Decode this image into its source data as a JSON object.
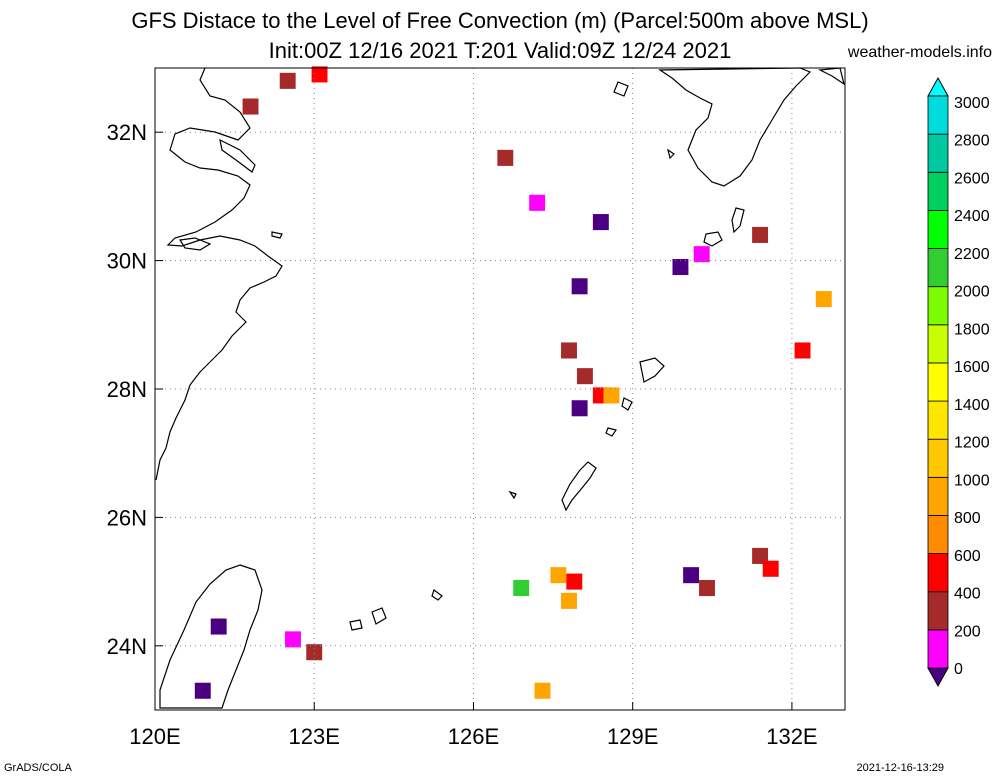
{
  "header": {
    "title_line1": "GFS Distace to the Level of Free Convection (m) (Parcel:500m above MSL)",
    "title_line2": "Init:00Z 12/16 2021 T:201 Valid:09Z 12/24 2021",
    "site": "weather-models.info"
  },
  "footer": {
    "credit": "GrADS/COLA",
    "timestamp": "2021-12-16-13:29"
  },
  "map": {
    "lon_range": [
      120,
      133
    ],
    "lat_range": [
      23,
      33
    ],
    "lon_ticks": [
      {
        "value": 120,
        "label": "120E"
      },
      {
        "value": 123,
        "label": "123E"
      },
      {
        "value": 126,
        "label": "126E"
      },
      {
        "value": 129,
        "label": "129E"
      },
      {
        "value": 132,
        "label": "132E"
      }
    ],
    "lat_ticks": [
      {
        "value": 24,
        "label": "24N"
      },
      {
        "value": 26,
        "label": "26N"
      },
      {
        "value": 28,
        "label": "28N"
      },
      {
        "value": 30,
        "label": "30N"
      },
      {
        "value": 32,
        "label": "32N"
      }
    ],
    "grid": true
  },
  "colorbar": {
    "labels": [
      "0",
      "200",
      "400",
      "600",
      "800",
      "1000",
      "1200",
      "1400",
      "1600",
      "1800",
      "2000",
      "2200",
      "2400",
      "2600",
      "2800",
      "3000"
    ],
    "colors": [
      "#4b0082",
      "#ff00ff",
      "#a52a2a",
      "#ff0000",
      "#ff8c00",
      "#ffa500",
      "#ffc800",
      "#ffe600",
      "#ffff00",
      "#c8ff00",
      "#7cfc00",
      "#32cd32",
      "#00ff00",
      "#00d060",
      "#00c8a0",
      "#00dcdc",
      "#00ffff"
    ]
  },
  "cells": [
    {
      "lon": 122.5,
      "lat": 32.8,
      "color": "#a52a2a"
    },
    {
      "lon": 123.1,
      "lat": 32.9,
      "color": "#ff0000"
    },
    {
      "lon": 121.8,
      "lat": 32.4,
      "color": "#a52a2a"
    },
    {
      "lon": 126.6,
      "lat": 31.6,
      "color": "#a52a2a"
    },
    {
      "lon": 127.2,
      "lat": 30.9,
      "color": "#ff00ff"
    },
    {
      "lon": 128.4,
      "lat": 30.6,
      "color": "#4b0082"
    },
    {
      "lon": 131.4,
      "lat": 30.4,
      "color": "#a52a2a"
    },
    {
      "lon": 130.3,
      "lat": 30.1,
      "color": "#ff00ff"
    },
    {
      "lon": 129.9,
      "lat": 29.9,
      "color": "#4b0082"
    },
    {
      "lon": 128.0,
      "lat": 29.6,
      "color": "#4b0082"
    },
    {
      "lon": 132.6,
      "lat": 29.4,
      "color": "#ffa500"
    },
    {
      "lon": 127.8,
      "lat": 28.6,
      "color": "#a52a2a"
    },
    {
      "lon": 128.1,
      "lat": 28.2,
      "color": "#a52a2a"
    },
    {
      "lon": 128.4,
      "lat": 27.9,
      "color": "#ff0000"
    },
    {
      "lon": 128.0,
      "lat": 27.7,
      "color": "#4b0082"
    },
    {
      "lon": 128.6,
      "lat": 27.9,
      "color": "#ffa500"
    },
    {
      "lon": 132.2,
      "lat": 28.6,
      "color": "#ff0000"
    },
    {
      "lon": 131.4,
      "lat": 25.4,
      "color": "#a52a2a"
    },
    {
      "lon": 131.6,
      "lat": 25.2,
      "color": "#ff0000"
    },
    {
      "lon": 130.1,
      "lat": 25.1,
      "color": "#4b0082"
    },
    {
      "lon": 130.4,
      "lat": 24.9,
      "color": "#a52a2a"
    },
    {
      "lon": 127.6,
      "lat": 25.1,
      "color": "#ffa500"
    },
    {
      "lon": 127.9,
      "lat": 25.0,
      "color": "#ff0000"
    },
    {
      "lon": 127.8,
      "lat": 24.7,
      "color": "#ffa500"
    },
    {
      "lon": 126.9,
      "lat": 24.9,
      "color": "#32cd32"
    },
    {
      "lon": 122.6,
      "lat": 24.1,
      "color": "#ff00ff"
    },
    {
      "lon": 123.0,
      "lat": 23.9,
      "color": "#a52a2a"
    },
    {
      "lon": 121.2,
      "lat": 24.3,
      "color": "#4b0082"
    },
    {
      "lon": 120.9,
      "lat": 23.3,
      "color": "#4b0082"
    },
    {
      "lon": 127.3,
      "lat": 23.3,
      "color": "#ffa500"
    }
  ]
}
